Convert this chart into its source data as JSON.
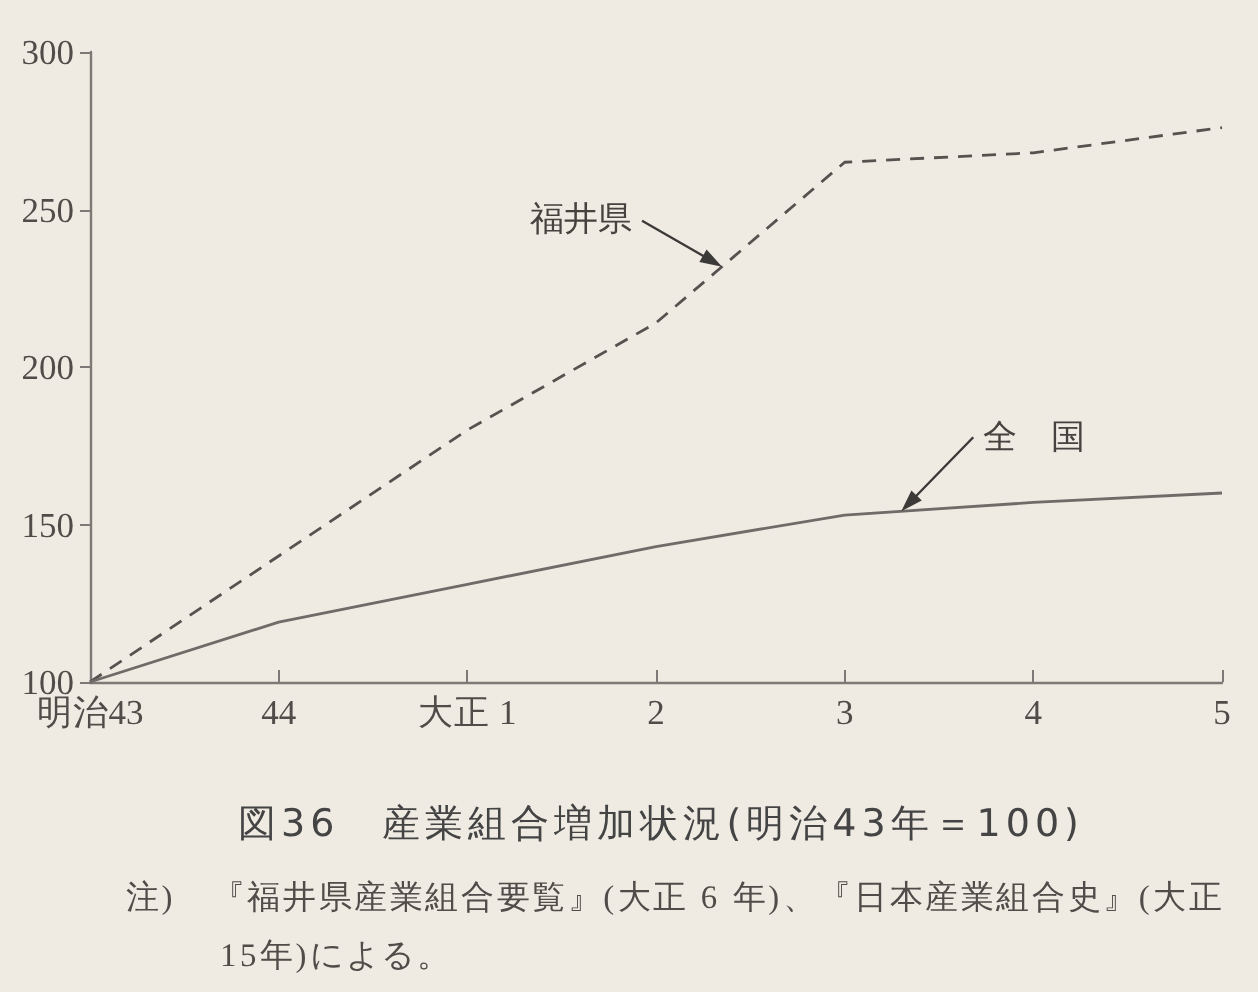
{
  "chart_data": {
    "type": "line",
    "title": "図36　産業組合増加状況(明治43年＝100)",
    "annotations": [
      "注)　『福井県産業組合要覧』(大正 6 年)、『日本産業組合史』(大正15年)による。"
    ],
    "categories": [
      "明治43",
      "44",
      "大正 1",
      "2",
      "3",
      "4",
      "5"
    ],
    "series": [
      {
        "name": "福井県",
        "color": "#55524f",
        "line_style": "dashed",
        "values": [
          100,
          140,
          180,
          214,
          265,
          268,
          276
        ]
      },
      {
        "name": "全　国",
        "color": "#6f6b68",
        "line_style": "solid",
        "values": [
          100,
          119,
          131,
          143,
          153,
          157,
          160
        ]
      }
    ],
    "ylim": [
      100,
      300
    ],
    "yticks": [
      100,
      150,
      200,
      250,
      300
    ],
    "grid": false,
    "legend": false,
    "marker": "none"
  }
}
